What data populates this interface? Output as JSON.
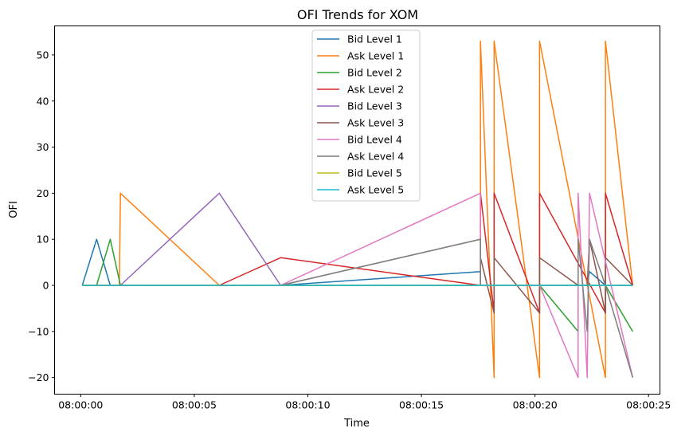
{
  "chart_data": {
    "type": "line",
    "title": "OFI Trends for XOM",
    "xlabel": "Time",
    "ylabel": "OFI",
    "x_axis": {
      "unit": "seconds after 08:00:00",
      "range": [
        -1.15,
        25.5
      ],
      "ticks": [
        0,
        5,
        10,
        15,
        20,
        25
      ],
      "tick_labels": [
        "08:00:00",
        "08:00:05",
        "08:00:10",
        "08:00:15",
        "08:00:20",
        "08:00:25"
      ]
    },
    "y_axis": {
      "range": [
        -23.6,
        56.3
      ],
      "ticks": [
        -20,
        -10,
        0,
        10,
        20,
        30,
        40,
        50
      ],
      "tick_labels": [
        "−20",
        "−10",
        "0",
        "10",
        "20",
        "30",
        "40",
        "50"
      ]
    },
    "grid": false,
    "legend_position": "upper center",
    "series": [
      {
        "name": "Bid Level 1",
        "color": "#1f77b4",
        "points": [
          [
            0.07,
            0
          ],
          [
            0.7,
            10
          ],
          [
            1.3,
            0
          ],
          [
            8.8,
            0
          ],
          [
            17.6,
            3
          ],
          [
            17.6,
            0
          ],
          [
            22.3,
            0
          ],
          [
            22.4,
            3
          ],
          [
            23.1,
            0
          ],
          [
            24.3,
            0
          ]
        ]
      },
      {
        "name": "Ask Level 1",
        "color": "#ff7f0e",
        "points": [
          [
            0.07,
            0
          ],
          [
            1.7,
            0
          ],
          [
            1.75,
            20
          ],
          [
            6.1,
            0
          ],
          [
            17.6,
            0
          ],
          [
            17.6,
            53
          ],
          [
            18.2,
            -20
          ],
          [
            18.2,
            53
          ],
          [
            20.2,
            -20
          ],
          [
            20.2,
            53
          ],
          [
            23.1,
            -20
          ],
          [
            23.1,
            53
          ],
          [
            24.3,
            0
          ]
        ]
      },
      {
        "name": "Bid Level 2",
        "color": "#2ca02c",
        "points": [
          [
            0.07,
            0
          ],
          [
            0.7,
            0
          ],
          [
            1.3,
            10
          ],
          [
            1.75,
            0
          ],
          [
            20.2,
            0
          ],
          [
            21.9,
            -10
          ],
          [
            21.9,
            0
          ],
          [
            23.1,
            0
          ],
          [
            24.3,
            -10
          ]
        ]
      },
      {
        "name": "Ask Level 2",
        "color": "#d62728",
        "points": [
          [
            0.07,
            0
          ],
          [
            6.1,
            0
          ],
          [
            8.8,
            6
          ],
          [
            17.6,
            0
          ],
          [
            17.6,
            20
          ],
          [
            18.2,
            -6
          ],
          [
            18.2,
            20
          ],
          [
            20.2,
            -6
          ],
          [
            20.2,
            20
          ],
          [
            23.1,
            -6
          ],
          [
            23.1,
            20
          ],
          [
            24.3,
            0
          ]
        ]
      },
      {
        "name": "Bid Level 3",
        "color": "#9467bd",
        "points": [
          [
            0.07,
            0
          ],
          [
            1.75,
            0
          ],
          [
            6.1,
            20
          ],
          [
            8.8,
            0
          ],
          [
            17.6,
            0
          ],
          [
            24.3,
            0
          ]
        ]
      },
      {
        "name": "Ask Level 3",
        "color": "#8c564b",
        "points": [
          [
            0.07,
            0
          ],
          [
            8.8,
            0
          ],
          [
            17.6,
            10
          ],
          [
            17.6,
            6
          ],
          [
            18.2,
            -6
          ],
          [
            18.2,
            6
          ],
          [
            20.2,
            -6
          ],
          [
            20.2,
            6
          ],
          [
            21.9,
            0
          ],
          [
            22.3,
            0
          ],
          [
            22.4,
            10
          ],
          [
            23.1,
            -6
          ],
          [
            23.1,
            6
          ],
          [
            24.3,
            0
          ]
        ]
      },
      {
        "name": "Bid Level 4",
        "color": "#e377c2",
        "points": [
          [
            0.07,
            0
          ],
          [
            8.8,
            0
          ],
          [
            17.6,
            20
          ],
          [
            17.6,
            0
          ],
          [
            20.2,
            0
          ],
          [
            21.9,
            -20
          ],
          [
            21.9,
            20
          ],
          [
            22.3,
            -20
          ],
          [
            22.4,
            20
          ],
          [
            24.3,
            -20
          ]
        ]
      },
      {
        "name": "Ask Level 4",
        "color": "#7f7f7f",
        "points": [
          [
            0.07,
            0
          ],
          [
            8.8,
            0
          ],
          [
            17.6,
            10
          ],
          [
            17.6,
            0
          ],
          [
            21.9,
            0
          ],
          [
            21.9,
            10
          ],
          [
            22.3,
            -10
          ],
          [
            22.4,
            10
          ],
          [
            23.1,
            0
          ],
          [
            24.3,
            -20
          ]
        ]
      },
      {
        "name": "Bid Level 5",
        "color": "#bcbd22",
        "points": [
          [
            0.07,
            0
          ],
          [
            24.3,
            0
          ]
        ]
      },
      {
        "name": "Ask Level 5",
        "color": "#17becf",
        "points": [
          [
            0.07,
            0
          ],
          [
            24.3,
            0
          ]
        ]
      }
    ]
  }
}
